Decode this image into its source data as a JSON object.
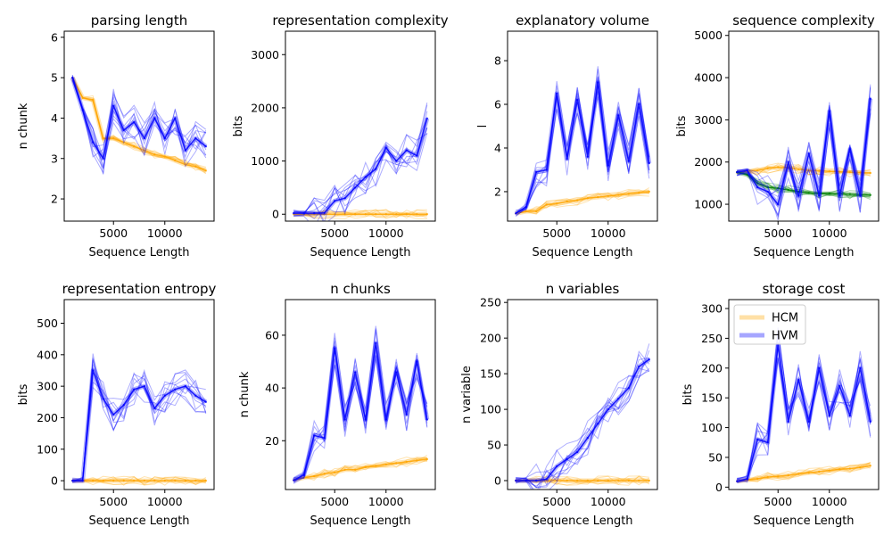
{
  "colors": {
    "hcm": "#ffa500",
    "hvm": "#0000ff",
    "extra": "#008000",
    "axis": "#000000"
  },
  "legend": {
    "placement": "upper-left",
    "panel": "storage cost",
    "entries": [
      {
        "label": "HCM",
        "series": "hcm"
      },
      {
        "label": "HVM",
        "series": "hvm"
      }
    ]
  },
  "chart_data": [
    {
      "type": "line",
      "title": "parsing length",
      "xlabel": "Sequence Length",
      "ylabel": "n chunk",
      "xlim": [
        200,
        14800
      ],
      "ylim": [
        1.45,
        6.15
      ],
      "xticks": [
        5000,
        10000
      ],
      "xtick_labels": [
        "5000",
        "10000"
      ],
      "yticks": [
        2,
        3,
        4,
        5,
        6
      ],
      "ytick_labels": [
        "2",
        "3",
        "4",
        "5",
        "6"
      ],
      "x": [
        1000,
        2000,
        3000,
        4000,
        5000,
        6000,
        7000,
        8000,
        9000,
        10000,
        11000,
        12000,
        13000,
        14000
      ],
      "series": [
        {
          "color_key": "hcm",
          "values": [
            5.0,
            4.5,
            4.45,
            3.5,
            3.5,
            3.4,
            3.3,
            3.2,
            3.1,
            3.05,
            2.95,
            2.85,
            2.8,
            2.7
          ]
        },
        {
          "color_key": "hvm",
          "values": [
            5.0,
            4.2,
            3.4,
            3.0,
            4.3,
            3.7,
            3.9,
            3.5,
            4.0,
            3.5,
            4.0,
            3.2,
            3.5,
            3.3
          ]
        }
      ]
    },
    {
      "type": "line",
      "title": "representation complexity",
      "xlabel": "Sequence Length",
      "ylabel": "bits",
      "xlim": [
        200,
        14800
      ],
      "ylim": [
        -130,
        3440
      ],
      "xticks": [
        5000,
        10000
      ],
      "xtick_labels": [
        "5000",
        "10000"
      ],
      "yticks": [
        0,
        1000,
        2000,
        3000
      ],
      "ytick_labels": [
        "0",
        "1000",
        "2000",
        "3000"
      ],
      "x": [
        1000,
        2000,
        3000,
        4000,
        5000,
        6000,
        7000,
        8000,
        9000,
        10000,
        11000,
        12000,
        13000,
        14000
      ],
      "series": [
        {
          "color_key": "hcm",
          "values": [
            0,
            0,
            0,
            0,
            0,
            0,
            0,
            0,
            0,
            0,
            0,
            0,
            0,
            0
          ]
        },
        {
          "color_key": "hvm",
          "values": [
            20,
            20,
            20,
            25,
            250,
            300,
            500,
            700,
            850,
            1250,
            1000,
            1200,
            1100,
            1800
          ]
        }
      ]
    },
    {
      "type": "line",
      "title": "explanatory volume",
      "xlabel": "Sequence Length",
      "ylabel": "l",
      "xlim": [
        200,
        14800
      ],
      "ylim": [
        0.65,
        9.35
      ],
      "xticks": [
        5000,
        10000
      ],
      "xtick_labels": [
        "5000",
        "10000"
      ],
      "yticks": [
        2,
        4,
        6,
        8
      ],
      "ytick_labels": [
        "2",
        "4",
        "6",
        "8"
      ],
      "x": [
        1000,
        2000,
        3000,
        4000,
        5000,
        6000,
        7000,
        8000,
        9000,
        10000,
        11000,
        12000,
        13000,
        14000
      ],
      "series": [
        {
          "color_key": "hcm",
          "values": [
            1.0,
            1.1,
            1.1,
            1.4,
            1.45,
            1.55,
            1.6,
            1.7,
            1.75,
            1.8,
            1.85,
            1.9,
            1.95,
            2.0
          ]
        },
        {
          "color_key": "hvm",
          "values": [
            1.0,
            1.3,
            2.9,
            3.0,
            6.5,
            3.5,
            6.2,
            3.6,
            7.0,
            3.2,
            5.5,
            3.4,
            6.0,
            3.3
          ]
        }
      ]
    },
    {
      "type": "line",
      "title": "sequence complexity",
      "xlabel": "Sequence Length",
      "ylabel": "bits",
      "xlim": [
        200,
        14800
      ],
      "ylim": [
        600,
        5100
      ],
      "xticks": [
        5000,
        10000
      ],
      "xtick_labels": [
        "5000",
        "10000"
      ],
      "yticks": [
        1000,
        2000,
        3000,
        4000,
        5000
      ],
      "ytick_labels": [
        "1000",
        "2000",
        "3000",
        "4000",
        "5000"
      ],
      "x": [
        1000,
        2000,
        3000,
        4000,
        5000,
        6000,
        7000,
        8000,
        9000,
        10000,
        11000,
        12000,
        13000,
        14000
      ],
      "series": [
        {
          "color_key": "hcm",
          "values": [
            1750,
            1780,
            1800,
            1850,
            1880,
            1870,
            1830,
            1800,
            1790,
            1780,
            1770,
            1760,
            1750,
            1740
          ]
        },
        {
          "color_key": "extra",
          "values": [
            1760,
            1700,
            1500,
            1400,
            1380,
            1340,
            1300,
            1270,
            1250,
            1250,
            1250,
            1240,
            1230,
            1220
          ]
        },
        {
          "color_key": "hvm",
          "values": [
            1760,
            1800,
            1400,
            1300,
            1000,
            2000,
            1200,
            2200,
            1200,
            3200,
            1200,
            2300,
            1200,
            3500
          ]
        }
      ]
    },
    {
      "type": "line",
      "title": "representation entropy",
      "xlabel": "Sequence Length",
      "ylabel": "bits",
      "xlim": [
        200,
        14800
      ],
      "ylim": [
        -28,
        575
      ],
      "xticks": [
        5000,
        10000
      ],
      "xtick_labels": [
        "5000",
        "10000"
      ],
      "yticks": [
        0,
        100,
        200,
        300,
        400,
        500
      ],
      "ytick_labels": [
        "0",
        "100",
        "200",
        "300",
        "400",
        "500"
      ],
      "x": [
        1000,
        2000,
        3000,
        4000,
        5000,
        6000,
        7000,
        8000,
        9000,
        10000,
        11000,
        12000,
        13000,
        14000
      ],
      "series": [
        {
          "color_key": "hcm",
          "values": [
            0,
            0,
            0,
            0,
            0,
            0,
            0,
            0,
            0,
            0,
            0,
            0,
            0,
            0
          ]
        },
        {
          "color_key": "hvm",
          "values": [
            0,
            0,
            350,
            260,
            210,
            240,
            290,
            300,
            230,
            270,
            290,
            300,
            270,
            250
          ]
        }
      ]
    },
    {
      "type": "line",
      "title": "n chunks",
      "xlabel": "Sequence Length",
      "ylabel": "n chunk",
      "xlim": [
        200,
        14800
      ],
      "ylim": [
        1.5,
        73.5
      ],
      "xticks": [
        5000,
        10000
      ],
      "xtick_labels": [
        "5000",
        "10000"
      ],
      "yticks": [
        20,
        40,
        60
      ],
      "ytick_labels": [
        "20",
        "40",
        "60"
      ],
      "x": [
        1000,
        2000,
        3000,
        4000,
        5000,
        6000,
        7000,
        8000,
        9000,
        10000,
        11000,
        12000,
        13000,
        14000
      ],
      "series": [
        {
          "color_key": "hcm",
          "values": [
            5,
            6,
            6.5,
            7.5,
            8,
            9,
            9,
            10,
            10.5,
            11,
            11.5,
            12,
            12.5,
            13
          ]
        },
        {
          "color_key": "hvm",
          "values": [
            5,
            7,
            22,
            21,
            55,
            28,
            46,
            28,
            57,
            28,
            46,
            30,
            50,
            28
          ]
        }
      ]
    },
    {
      "type": "line",
      "title": "n variables",
      "xlabel": "Sequence Length",
      "ylabel": "n variable",
      "xlim": [
        200,
        14800
      ],
      "ylim": [
        -12.5,
        254
      ],
      "xticks": [
        5000,
        10000
      ],
      "xtick_labels": [
        "5000",
        "10000"
      ],
      "yticks": [
        0,
        50,
        100,
        150,
        200,
        250
      ],
      "ytick_labels": [
        "0",
        "50",
        "100",
        "150",
        "200",
        "250"
      ],
      "x": [
        1000,
        2000,
        3000,
        4000,
        5000,
        6000,
        7000,
        8000,
        9000,
        10000,
        11000,
        12000,
        13000,
        14000
      ],
      "series": [
        {
          "color_key": "hcm",
          "values": [
            0,
            0,
            0,
            0,
            0,
            0,
            0,
            0,
            0,
            0,
            0,
            0,
            0,
            0
          ]
        },
        {
          "color_key": "hvm",
          "values": [
            0,
            0,
            0,
            2,
            20,
            30,
            40,
            60,
            80,
            100,
            115,
            130,
            160,
            170
          ]
        }
      ]
    },
    {
      "type": "line",
      "title": "storage cost",
      "xlabel": "Sequence Length",
      "ylabel": "bits",
      "xlim": [
        200,
        14800
      ],
      "ylim": [
        -4,
        315
      ],
      "xticks": [
        5000,
        10000
      ],
      "xtick_labels": [
        "5000",
        "10000"
      ],
      "yticks": [
        0,
        50,
        100,
        150,
        200,
        250,
        300
      ],
      "ytick_labels": [
        "0",
        "50",
        "100",
        "150",
        "200",
        "250",
        "300"
      ],
      "x": [
        1000,
        2000,
        3000,
        4000,
        5000,
        6000,
        7000,
        8000,
        9000,
        10000,
        11000,
        12000,
        13000,
        14000
      ],
      "series": [
        {
          "color_key": "hcm",
          "values": [
            10,
            12,
            14,
            17,
            18,
            20,
            22,
            24,
            26,
            28,
            30,
            31,
            33,
            36
          ]
        },
        {
          "color_key": "hvm",
          "values": [
            10,
            14,
            80,
            75,
            240,
            110,
            180,
            110,
            200,
            120,
            170,
            120,
            200,
            110
          ]
        }
      ]
    }
  ]
}
